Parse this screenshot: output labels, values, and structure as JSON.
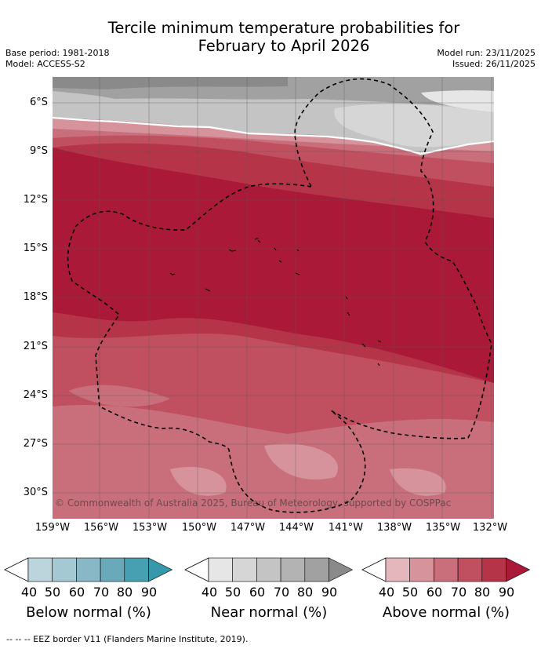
{
  "title": {
    "line1": "Tercile minimum temperature probabilities for",
    "line2": "February to April 2026"
  },
  "meta": {
    "base_period": "Base period: 1981-2018",
    "model": "Model: ACCESS-S2",
    "model_run": "Model run: 23/11/2025",
    "issued": "Issued: 26/11/2025"
  },
  "map": {
    "y_ticks": [
      "6°S",
      "9°S",
      "12°S",
      "15°S",
      "18°S",
      "21°S",
      "24°S",
      "27°S",
      "30°S"
    ],
    "x_ticks": [
      "159°W",
      "156°W",
      "153°W",
      "150°W",
      "147°W",
      "144°W",
      "141°W",
      "138°W",
      "135°W",
      "132°W"
    ],
    "copyright": "© Commonwealth of Australia 2025, Bureau of Meteorology, supported by COSPPac"
  },
  "legends": [
    {
      "caption": "Below normal (%)",
      "labels": [
        "40",
        "50",
        "60",
        "70",
        "80",
        "90"
      ],
      "colors": [
        "#bcd5dc",
        "#a5c9d2",
        "#88b8c5",
        "#69a9b9",
        "#46a0b2",
        "#3797ab"
      ]
    },
    {
      "caption": "Near normal (%)",
      "labels": [
        "40",
        "50",
        "60",
        "70",
        "80",
        "90"
      ],
      "colors": [
        "#e6e6e6",
        "#d6d6d6",
        "#c4c4c4",
        "#b3b3b3",
        "#a1a1a1",
        "#8a8a8a"
      ]
    },
    {
      "caption": "Above normal (%)",
      "labels": [
        "40",
        "50",
        "60",
        "70",
        "80",
        "90"
      ],
      "colors": [
        "#e4b7bc",
        "#d6939b",
        "#c96f7c",
        "#c0505f",
        "#b53448",
        "#aa1a38"
      ]
    }
  ],
  "footer": "-- -- -- EEZ border V11 (Flanders Marine Institute, 2019)."
}
